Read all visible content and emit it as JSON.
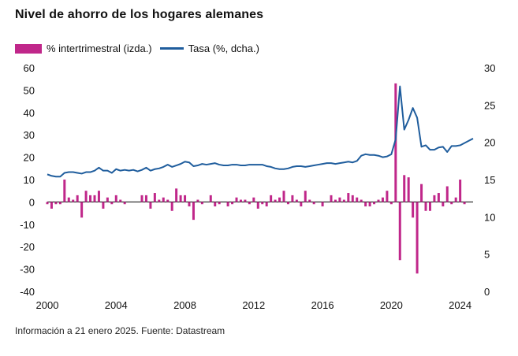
{
  "title": "Nivel de ahorro de los hogares alemanes",
  "source": "Información a 21 enero 2025. Fuente: Datastream",
  "colors": {
    "bar": "#c0278a",
    "line": "#1f5d9d",
    "axis": "#000000"
  },
  "chart_data": {
    "type": "bar+line",
    "title": "Nivel de ahorro de los hogares alemanes",
    "legend_position": "top-left",
    "grid": false,
    "x_ticks": [
      "2000",
      "2004",
      "2008",
      "2012",
      "2016",
      "2020",
      "2024"
    ],
    "x_range": [
      2000,
      2024.75
    ],
    "y_left": {
      "ticks": [
        "60",
        "50",
        "40",
        "30",
        "20",
        "10",
        "0",
        "-10",
        "-20",
        "-30",
        "-40"
      ],
      "range": [
        -40,
        60
      ]
    },
    "y_right": {
      "ticks": [
        "30",
        "25",
        "20",
        "15",
        "10",
        "5",
        "0"
      ],
      "range": [
        0,
        30
      ]
    },
    "series": [
      {
        "name": "% intertrimestral (izda.)",
        "type": "bar",
        "axis": "left",
        "x": [
          2000.0,
          2000.25,
          2000.5,
          2000.75,
          2001.0,
          2001.25,
          2001.5,
          2001.75,
          2002.0,
          2002.25,
          2002.5,
          2002.75,
          2003.0,
          2003.25,
          2003.5,
          2003.75,
          2004.0,
          2004.25,
          2004.5,
          2004.75,
          2005.0,
          2005.25,
          2005.5,
          2005.75,
          2006.0,
          2006.25,
          2006.5,
          2006.75,
          2007.0,
          2007.25,
          2007.5,
          2007.75,
          2008.0,
          2008.25,
          2008.5,
          2008.75,
          2009.0,
          2009.25,
          2009.5,
          2009.75,
          2010.0,
          2010.25,
          2010.5,
          2010.75,
          2011.0,
          2011.25,
          2011.5,
          2011.75,
          2012.0,
          2012.25,
          2012.5,
          2012.75,
          2013.0,
          2013.25,
          2013.5,
          2013.75,
          2014.0,
          2014.25,
          2014.5,
          2014.75,
          2015.0,
          2015.25,
          2015.5,
          2015.75,
          2016.0,
          2016.25,
          2016.5,
          2016.75,
          2017.0,
          2017.25,
          2017.5,
          2017.75,
          2018.0,
          2018.25,
          2018.5,
          2018.75,
          2019.0,
          2019.25,
          2019.5,
          2019.75,
          2020.0,
          2020.25,
          2020.5,
          2020.75,
          2021.0,
          2021.25,
          2021.5,
          2021.75,
          2022.0,
          2022.25,
          2022.5,
          2022.75,
          2023.0,
          2023.25,
          2023.5,
          2023.75,
          2024.0,
          2024.25
        ],
        "values": [
          -1,
          -3,
          -1,
          -1,
          10,
          2,
          1,
          3,
          -7,
          5,
          3,
          3,
          5,
          -3,
          2,
          -1,
          3,
          1,
          -1,
          0,
          0,
          0,
          3,
          3,
          -3,
          4,
          1,
          2,
          1,
          -4,
          6,
          3,
          3,
          -2,
          -8,
          1,
          -1,
          0,
          3,
          -2,
          -1,
          0,
          -2,
          -1,
          2,
          1,
          1,
          -1,
          2,
          -3,
          -1,
          -2,
          3,
          1,
          2,
          5,
          -1,
          3,
          1,
          -2,
          5,
          1,
          -1,
          0,
          -2,
          0,
          3,
          1,
          2,
          1,
          4,
          3,
          2,
          1,
          -2,
          -2,
          -1,
          1,
          2,
          5,
          -1,
          53,
          -26,
          12,
          11,
          -7,
          -32,
          8,
          -4,
          -4,
          3,
          4,
          -2,
          7,
          -1,
          2,
          10,
          -1
        ]
      },
      {
        "name": "Tasa (%, dcha.)",
        "type": "line",
        "axis": "right",
        "x": [
          2000.0,
          2000.25,
          2000.5,
          2000.75,
          2001.0,
          2001.25,
          2001.5,
          2001.75,
          2002.0,
          2002.25,
          2002.5,
          2002.75,
          2003.0,
          2003.25,
          2003.5,
          2003.75,
          2004.0,
          2004.25,
          2004.5,
          2004.75,
          2005.0,
          2005.25,
          2005.5,
          2005.75,
          2006.0,
          2006.25,
          2006.5,
          2006.75,
          2007.0,
          2007.25,
          2007.5,
          2007.75,
          2008.0,
          2008.25,
          2008.5,
          2008.75,
          2009.0,
          2009.25,
          2009.5,
          2009.75,
          2010.0,
          2010.25,
          2010.5,
          2010.75,
          2011.0,
          2011.25,
          2011.5,
          2011.75,
          2012.0,
          2012.25,
          2012.5,
          2012.75,
          2013.0,
          2013.25,
          2013.5,
          2013.75,
          2014.0,
          2014.25,
          2014.5,
          2014.75,
          2015.0,
          2015.25,
          2015.5,
          2015.75,
          2016.0,
          2016.25,
          2016.5,
          2016.75,
          2017.0,
          2017.25,
          2017.5,
          2017.75,
          2018.0,
          2018.25,
          2018.5,
          2018.75,
          2019.0,
          2019.25,
          2019.5,
          2019.75,
          2020.0,
          2020.25,
          2020.5,
          2020.75,
          2021.0,
          2021.25,
          2021.5,
          2021.75,
          2022.0,
          2022.25,
          2022.5,
          2022.75,
          2023.0,
          2023.25,
          2023.5,
          2023.75,
          2024.0,
          2024.25,
          2024.5,
          2024.75
        ],
        "values": [
          15.7,
          15.5,
          15.4,
          15.4,
          15.9,
          16.0,
          16.0,
          15.9,
          15.8,
          16.0,
          16.0,
          16.2,
          16.6,
          16.2,
          16.2,
          15.9,
          16.4,
          16.2,
          16.3,
          16.2,
          16.3,
          16.1,
          16.3,
          16.6,
          16.2,
          16.4,
          16.5,
          16.7,
          17.0,
          16.7,
          16.9,
          17.1,
          17.4,
          17.3,
          16.8,
          16.9,
          17.1,
          17.0,
          17.1,
          17.2,
          17.0,
          16.9,
          16.9,
          17.0,
          17.0,
          16.9,
          16.9,
          17.0,
          17.0,
          17.0,
          17.0,
          16.8,
          16.7,
          16.5,
          16.4,
          16.4,
          16.5,
          16.7,
          16.8,
          16.8,
          16.7,
          16.8,
          16.9,
          17.0,
          17.1,
          17.2,
          17.2,
          17.1,
          17.2,
          17.3,
          17.4,
          17.3,
          17.5,
          18.2,
          18.4,
          18.3,
          18.3,
          18.2,
          18.0,
          18.1,
          18.4,
          20.4,
          27.5,
          21.7,
          23.0,
          24.6,
          23.3,
          19.4,
          19.6,
          19.0,
          19.0,
          19.3,
          19.4,
          18.7,
          19.5,
          19.5,
          19.6,
          19.9,
          20.2,
          20.5
        ]
      }
    ]
  }
}
